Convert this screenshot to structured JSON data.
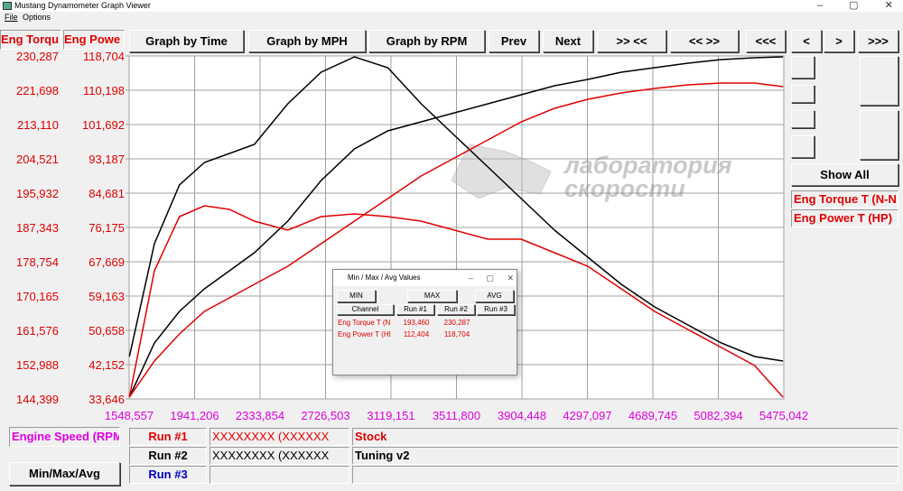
{
  "window": {
    "title": "Mustang Dynamometer Graph Viewer",
    "menu": [
      "File",
      "Options"
    ]
  },
  "toolbar": [
    "Graph by Time",
    "Graph by MPH",
    "Graph by RPM",
    "Prev",
    "Next",
    ">> <<",
    "<< >>",
    "<<<",
    "<",
    ">",
    ">>>"
  ],
  "show_all": "Show All",
  "min_max_button": "Min/Max/Avg",
  "watermark": [
    "лаборатория",
    "скорости"
  ],
  "chart_data": {
    "type": "line",
    "y_label": "Eng Torqu",
    "y2_label": "Eng Powe",
    "x_label": "Engine Speed (RPM",
    "legend": [
      "Eng Torque T (N-N",
      "Eng Power T (HP)"
    ],
    "x": [
      1550,
      1700,
      1850,
      2000,
      2150,
      2300,
      2500,
      2700,
      2900,
      3100,
      3300,
      3500,
      3700,
      3900,
      4100,
      4300,
      4500,
      4700,
      4900,
      5100,
      5300,
      5470
    ],
    "xlim": [
      1548.557,
      5475.042
    ],
    "xticks": [
      {
        "value": 1548.557,
        "label": "1548,557"
      },
      {
        "value": 1941.206,
        "label": "1941,206"
      },
      {
        "value": 2333.854,
        "label": "2333,854"
      },
      {
        "value": 2726.503,
        "label": "2726,503"
      },
      {
        "value": 3119.151,
        "label": "3119,151"
      },
      {
        "value": 3511.8,
        "label": "3511,800"
      },
      {
        "value": 3904.448,
        "label": "3904,448"
      },
      {
        "value": 4297.097,
        "label": "4297,097"
      },
      {
        "value": 4689.745,
        "label": "4689,745"
      },
      {
        "value": 5082.394,
        "label": "5082,394"
      },
      {
        "value": 5475.042,
        "label": "5475,042"
      }
    ],
    "ylim": [
      144.399,
      230.287
    ],
    "yticks": [
      {
        "value": 144.399,
        "label": "144,399"
      },
      {
        "value": 152.988,
        "label": "152,988"
      },
      {
        "value": 161.576,
        "label": "161,576"
      },
      {
        "value": 170.165,
        "label": "170,165"
      },
      {
        "value": 178.754,
        "label": "178,754"
      },
      {
        "value": 187.343,
        "label": "187,343"
      },
      {
        "value": 195.932,
        "label": "195,932"
      },
      {
        "value": 204.521,
        "label": "204,521"
      },
      {
        "value": 213.11,
        "label": "213,110"
      },
      {
        "value": 221.698,
        "label": "221,698"
      },
      {
        "value": 230.287,
        "label": "230,287"
      }
    ],
    "y2lim": [
      33.646,
      118.704
    ],
    "y2ticks": [
      {
        "value": 33.646,
        "label": "33,646"
      },
      {
        "value": 42.152,
        "label": "42,152"
      },
      {
        "value": 50.658,
        "label": "50,658"
      },
      {
        "value": 59.163,
        "label": "59,163"
      },
      {
        "value": 67.669,
        "label": "67,669"
      },
      {
        "value": 76.175,
        "label": "76,175"
      },
      {
        "value": 84.681,
        "label": "84,681"
      },
      {
        "value": 93.187,
        "label": "93,187"
      },
      {
        "value": 101.692,
        "label": "101,692"
      },
      {
        "value": 110.198,
        "label": "110,198"
      },
      {
        "value": 118.704,
        "label": "118,704"
      }
    ],
    "grid": true,
    "series": [
      {
        "color": "#000000",
        "values": [
          155.022,
          183.274,
          197.966,
          203.616,
          205.876,
          208.137,
          218.308,
          226.218,
          230.061,
          227.348,
          218.308,
          210.397,
          202.486,
          194.575,
          186.665,
          179.884,
          173.104,
          167.453,
          162.933,
          158.412,
          155.022,
          153.892
        ]
      },
      {
        "color": "#000000",
        "axis": "y2",
        "values": [
          34.094,
          47.524,
          55.358,
          60.954,
          65.431,
          69.908,
          77.742,
          87.815,
          95.65,
          100.126,
          102.365,
          104.603,
          106.842,
          109.08,
          111.318,
          112.885,
          114.676,
          115.795,
          116.914,
          117.81,
          118.258,
          118.481
        ]
      },
      {
        "color": "#e00000",
        "values": [
          144.851,
          176.494,
          190.055,
          192.767,
          191.863,
          188.925,
          186.665,
          190.055,
          190.733,
          190.055,
          188.925,
          186.665,
          184.405,
          184.405,
          181.014,
          177.624,
          171.973,
          166.323,
          161.803,
          157.282,
          152.762,
          144.851
        ]
      },
      {
        "color": "#e00000",
        "axis": "y2",
        "values": [
          34.094,
          43.047,
          49.762,
          55.358,
          58.716,
          62.074,
          66.55,
          72.146,
          77.742,
          83.338,
          88.934,
          93.411,
          97.888,
          102.365,
          105.722,
          107.961,
          109.528,
          110.647,
          111.542,
          111.99,
          111.99,
          111.095
        ]
      }
    ]
  },
  "runs": [
    {
      "label": "Run #1",
      "file": "XXXXXXXX (XXXXXX",
      "name": "Stock"
    },
    {
      "label": "Run #2",
      "file": "XXXXXXXX (XXXXXX",
      "name": "Tuning v2"
    },
    {
      "label": "Run #3"
    }
  ],
  "dialog": {
    "title": "Min / Max / Avg Values",
    "buttons": [
      "MIN",
      "MAX",
      "AVG"
    ],
    "columns": [
      "Channel",
      "Run #1",
      "Run #2",
      "Run #3"
    ],
    "rows": [
      [
        "Eng Torque T (N",
        "193,460",
        "230,287"
      ],
      [
        "Eng Power T (HI",
        "112,404",
        "118,704"
      ]
    ]
  }
}
